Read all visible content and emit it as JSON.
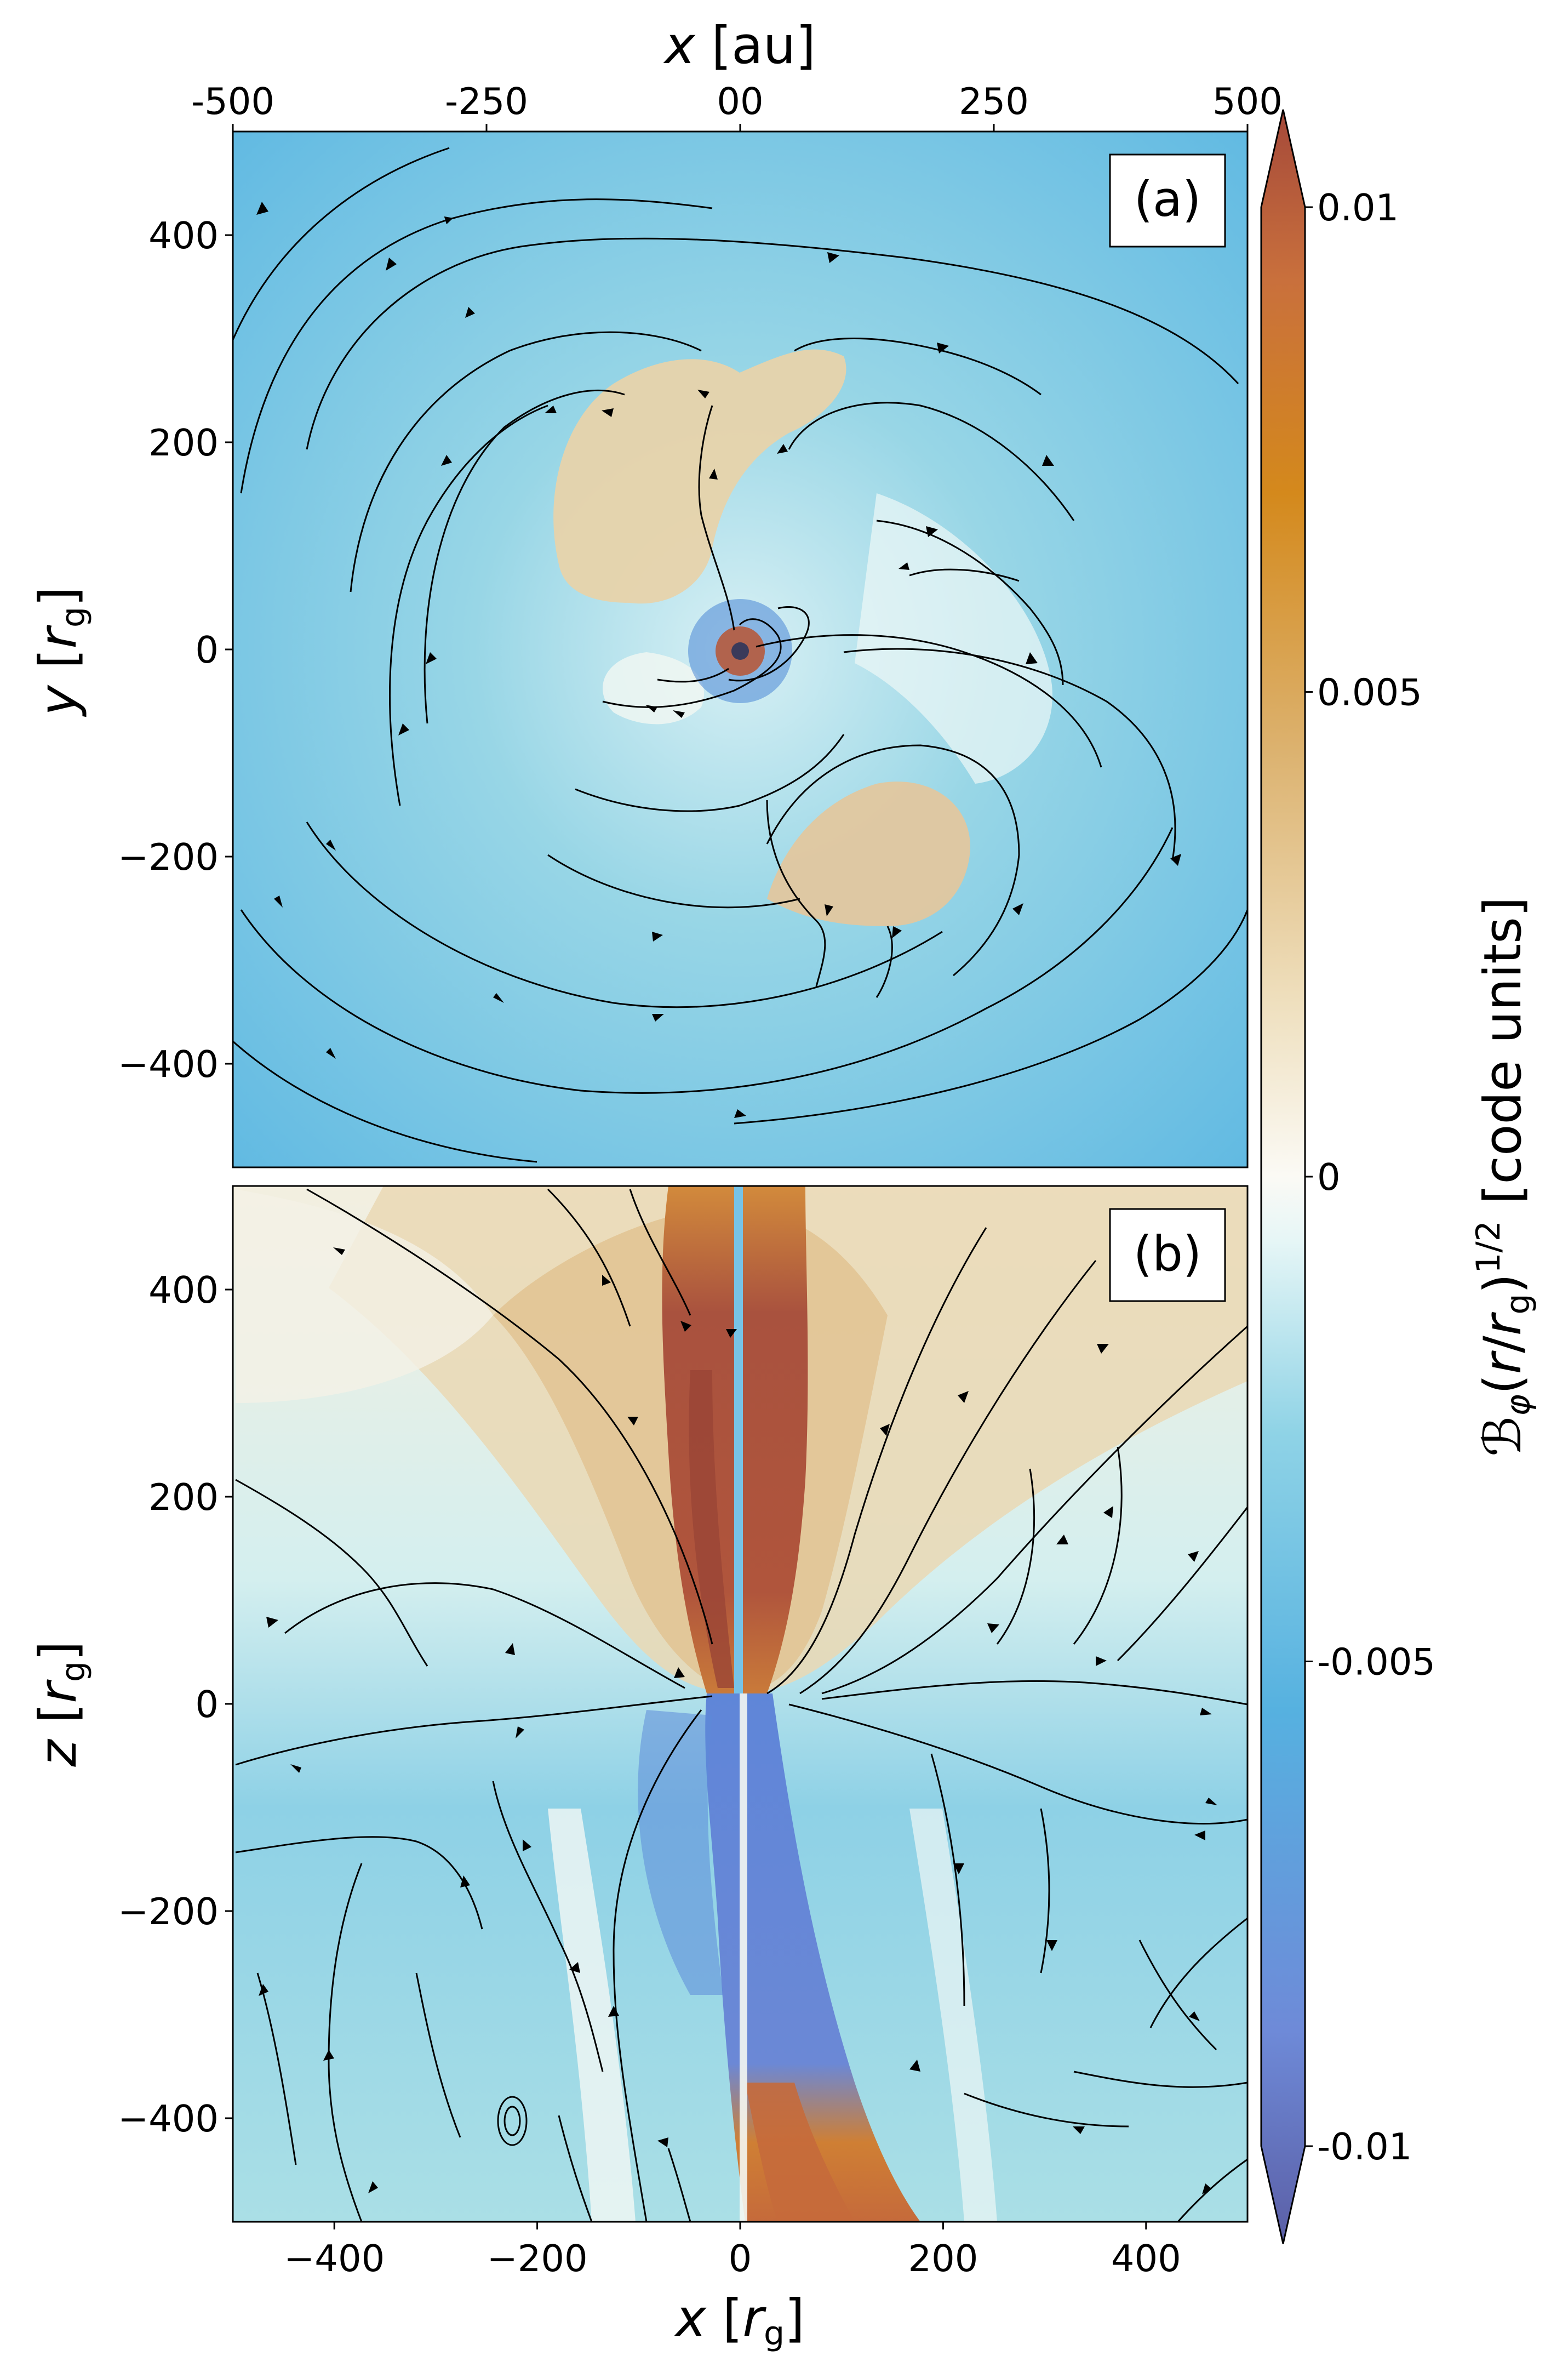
{
  "colors": {
    "cmap": [
      "#5b5fa6",
      "#6e8ad8",
      "#56b1e0",
      "#8fd3e6",
      "#e6f6f6",
      "#fbfaf5",
      "#efe0bf",
      "#dcb26f",
      "#d4891c",
      "#c9703c",
      "#a5493a"
    ],
    "streamline": "#000000",
    "panel_bg_a": "#6cc3e2",
    "panel_bg_b": "#9ad8e6",
    "warm": "#e7d5ae",
    "hot": "#b05040",
    "cold": "#4f7fd8"
  },
  "chart_data": [
    {
      "type": "heatmap",
      "panel_label": "(a)",
      "xlabel": "x [au]",
      "ylabel": "y [r_g]",
      "xlim_au": [
        -500,
        500
      ],
      "xticks_au": [
        "-500",
        "-250",
        "00",
        "250",
        "500"
      ],
      "ylim": [
        -500,
        500
      ],
      "yticks": [
        "400",
        "200",
        "0",
        "−200",
        "−400"
      ],
      "ytick_values": [
        400,
        200,
        0,
        -200,
        -400
      ]
    },
    {
      "type": "heatmap",
      "panel_label": "(b)",
      "xlabel": "x [r_g]",
      "ylabel": "z [r_g]",
      "xlim": [
        -500,
        500
      ],
      "xticks": [
        "−400",
        "−200",
        "0",
        "200",
        "400"
      ],
      "xtick_values": [
        -400,
        -200,
        0,
        200,
        400
      ],
      "ylim": [
        -500,
        500
      ],
      "yticks": [
        "400",
        "200",
        "0",
        "−200",
        "−400"
      ],
      "ytick_values": [
        400,
        200,
        0,
        -200,
        -400
      ]
    }
  ],
  "colorbar": {
    "label": "ℬ_φ(r/r_g)^1/2 [code units]",
    "range": [
      -0.01,
      0.01
    ],
    "extend": "both",
    "ticks": [
      "0.01",
      "0.005",
      "0",
      "-0.005",
      "-0.01"
    ],
    "tick_values": [
      0.01,
      0.005,
      0,
      -0.005,
      -0.01
    ]
  }
}
